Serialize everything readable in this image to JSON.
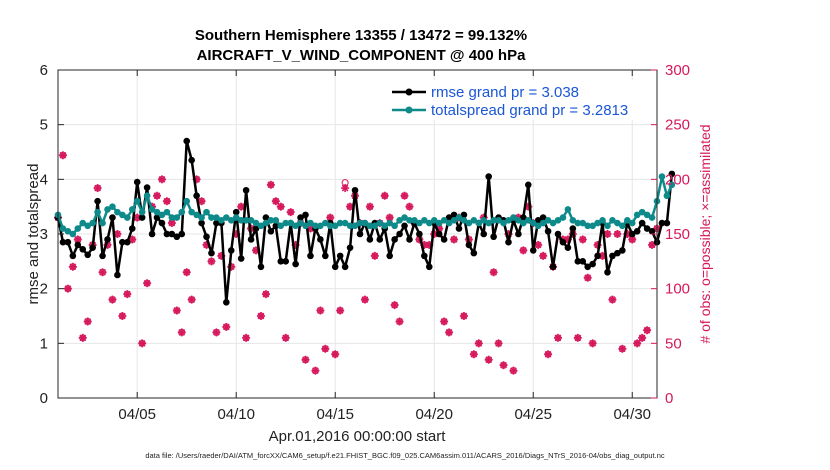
{
  "chart_data": {
    "type": "line",
    "title": "Southern Hemisphere 13355 / 13472 = 99.132%",
    "subtitle": "AIRCRAFT_V_WIND_COMPONENT @ 400 hPa",
    "xlabel": "Apr.01,2016 00:00:00 start",
    "ylabel": "rmse and totalspread",
    "ylabel_right": "# of obs: o=possible; ×=assimilated",
    "footnote": "data file: /Users/raeder/DAI/ATM_forcXX/CAM6_setup/f.e21.FHIST_BGC.f09_025.CAM6assim.011/ACARS_2016/Diags_NTrS_2016-04/obs_diag_output.nc",
    "xlim": [
      1,
      31.25
    ],
    "ylim": [
      0,
      6
    ],
    "ylim_right": [
      0,
      300
    ],
    "x_ticks": [
      5,
      10,
      15,
      20,
      25,
      30
    ],
    "x_tick_labels": [
      "04/05",
      "04/10",
      "04/15",
      "04/20",
      "04/25",
      "04/30"
    ],
    "y_ticks": [
      0,
      1,
      2,
      3,
      4,
      5,
      6
    ],
    "y_tick_labels": [
      "0",
      "1",
      "2",
      "3",
      "4",
      "5",
      "6"
    ],
    "y_ticks_right": [
      0,
      50,
      100,
      150,
      200,
      250,
      300
    ],
    "y_tick_labels_right": [
      "0",
      "50",
      "100",
      "150",
      "200",
      "250",
      "300"
    ],
    "grid": true,
    "legend_position": "top-right",
    "x_start": 1.0,
    "x_step": 0.25,
    "series": [
      {
        "name": "rmse grand pr = 3.038",
        "color": "#000000",
        "marker": "filled-dot",
        "axis": "left",
        "values": [
          3.3,
          2.85,
          2.85,
          2.6,
          2.8,
          2.72,
          2.62,
          2.75,
          3.6,
          2.6,
          2.9,
          3.3,
          2.25,
          2.85,
          2.85,
          3.1,
          3.95,
          3.3,
          3.85,
          3.0,
          3.3,
          3.2,
          3.0,
          3.0,
          2.95,
          3.0,
          4.7,
          4.35,
          3.7,
          3.2,
          2.95,
          2.65,
          3.2,
          3.2,
          1.75,
          2.7,
          3.4,
          2.55,
          3.8,
          2.9,
          3.1,
          2.4,
          3.3,
          3.05,
          3.15,
          2.5,
          2.5,
          3.2,
          2.45,
          3.3,
          3.35,
          2.6,
          3.1,
          2.9,
          2.6,
          3.2,
          2.4,
          2.6,
          2.4,
          2.75,
          3.8,
          3.0,
          3.2,
          2.9,
          3.2,
          2.9,
          3.1,
          2.6,
          2.9,
          3.0,
          3.15,
          2.9,
          3.2,
          3.0,
          2.6,
          2.4,
          3.2,
          3.0,
          2.9,
          3.3,
          3.35,
          3.1,
          3.35,
          2.8,
          2.65,
          3.2,
          3.0,
          4.05,
          2.95,
          3.3,
          3.25,
          2.85,
          3.25,
          3.0,
          3.3,
          3.9,
          2.7,
          3.25,
          3.3,
          3.05,
          2.4,
          3.0,
          2.85,
          2.75,
          3.1,
          2.5,
          2.5,
          2.4,
          2.45,
          2.6,
          3.2,
          2.3,
          2.6,
          2.65,
          2.7,
          3.2,
          3.0,
          3.05,
          3.2,
          3.1,
          3.05,
          2.85,
          3.2,
          3.2,
          4.1
        ]
      },
      {
        "name": "totalspread grand pr = 3.2813",
        "color": "#0e8a8a",
        "marker": "filled-dot",
        "axis": "left",
        "values": [
          3.35,
          3.1,
          3.05,
          3.0,
          3.1,
          3.2,
          3.15,
          3.2,
          3.4,
          3.2,
          3.45,
          3.5,
          3.4,
          3.35,
          3.3,
          3.45,
          3.6,
          3.4,
          3.7,
          3.45,
          3.4,
          3.35,
          3.4,
          3.3,
          3.3,
          3.4,
          3.6,
          3.4,
          3.35,
          3.3,
          3.4,
          3.3,
          3.3,
          3.25,
          3.3,
          3.25,
          3.3,
          3.25,
          3.25,
          3.25,
          3.2,
          3.15,
          3.2,
          3.25,
          3.25,
          3.15,
          3.2,
          3.2,
          3.15,
          3.2,
          3.15,
          3.2,
          3.15,
          3.15,
          3.2,
          3.15,
          3.15,
          3.2,
          3.2,
          3.15,
          3.15,
          3.2,
          3.2,
          3.15,
          3.15,
          3.2,
          3.15,
          3.2,
          3.15,
          3.25,
          3.3,
          3.25,
          3.25,
          3.2,
          3.25,
          3.2,
          3.25,
          3.2,
          3.25,
          3.2,
          3.25,
          3.3,
          3.25,
          3.2,
          3.25,
          3.2,
          3.25,
          3.2,
          3.25,
          3.25,
          3.2,
          3.25,
          3.3,
          3.25,
          3.2,
          3.25,
          3.2,
          3.15,
          3.2,
          3.25,
          3.2,
          3.25,
          3.3,
          3.45,
          3.25,
          3.2,
          3.2,
          3.15,
          3.15,
          3.2,
          3.25,
          3.15,
          3.25,
          3.2,
          3.15,
          3.25,
          3.2,
          3.35,
          3.4,
          3.35,
          3.3,
          3.6,
          4.05,
          3.7,
          3.9
        ]
      },
      {
        "name": "obs possible",
        "color": "#d6185c",
        "marker": "circle",
        "axis": "right",
        "values": [
          165,
          222,
          100,
          120,
          145,
          55,
          70,
          140,
          192,
          115,
          140,
          90,
          150,
          75,
          95,
          145,
          165,
          50,
          105,
          175,
          185,
          200,
          180,
          160,
          80,
          60,
          115,
          90,
          200,
          180,
          140,
          125,
          60,
          130,
          65,
          120,
          150,
          175,
          55,
          155,
          135,
          75,
          95,
          195,
          180,
          175,
          55,
          170,
          140,
          160,
          35,
          155,
          25,
          80,
          45,
          165,
          40,
          80,
          197,
          175,
          185,
          160,
          90,
          175,
          130,
          160,
          185,
          165,
          85,
          70,
          185,
          175,
          160,
          145,
          140,
          140,
          150,
          155,
          70,
          60,
          145,
          165,
          75,
          145,
          40,
          50,
          165,
          35,
          115,
          50,
          30,
          150,
          25,
          165,
          135,
          175,
          160,
          140,
          130,
          40,
          120,
          55,
          145,
          145,
          150,
          55,
          145,
          110,
          50,
          140,
          130,
          150,
          90,
          150,
          45,
          150,
          145,
          50,
          55,
          62,
          140,
          155,
          95,
          25,
          48
        ]
      },
      {
        "name": "obs assimilated",
        "color": "#d6185c",
        "marker": "asterisk",
        "axis": "right",
        "values": [
          165,
          222,
          100,
          120,
          145,
          55,
          70,
          140,
          192,
          115,
          140,
          90,
          150,
          75,
          95,
          145,
          165,
          50,
          105,
          175,
          185,
          200,
          180,
          160,
          80,
          60,
          115,
          90,
          200,
          180,
          140,
          125,
          60,
          130,
          65,
          120,
          150,
          175,
          55,
          155,
          135,
          75,
          95,
          195,
          180,
          175,
          55,
          170,
          140,
          160,
          35,
          155,
          25,
          80,
          45,
          165,
          40,
          80,
          192,
          175,
          185,
          160,
          90,
          175,
          130,
          160,
          185,
          165,
          85,
          70,
          185,
          175,
          160,
          145,
          140,
          140,
          150,
          155,
          70,
          60,
          145,
          165,
          75,
          145,
          40,
          50,
          165,
          35,
          115,
          50,
          30,
          150,
          25,
          165,
          135,
          175,
          160,
          140,
          130,
          40,
          120,
          55,
          145,
          145,
          150,
          55,
          145,
          110,
          50,
          140,
          130,
          150,
          90,
          150,
          45,
          150,
          145,
          50,
          55,
          62,
          140,
          155,
          95,
          25,
          48
        ]
      }
    ]
  }
}
